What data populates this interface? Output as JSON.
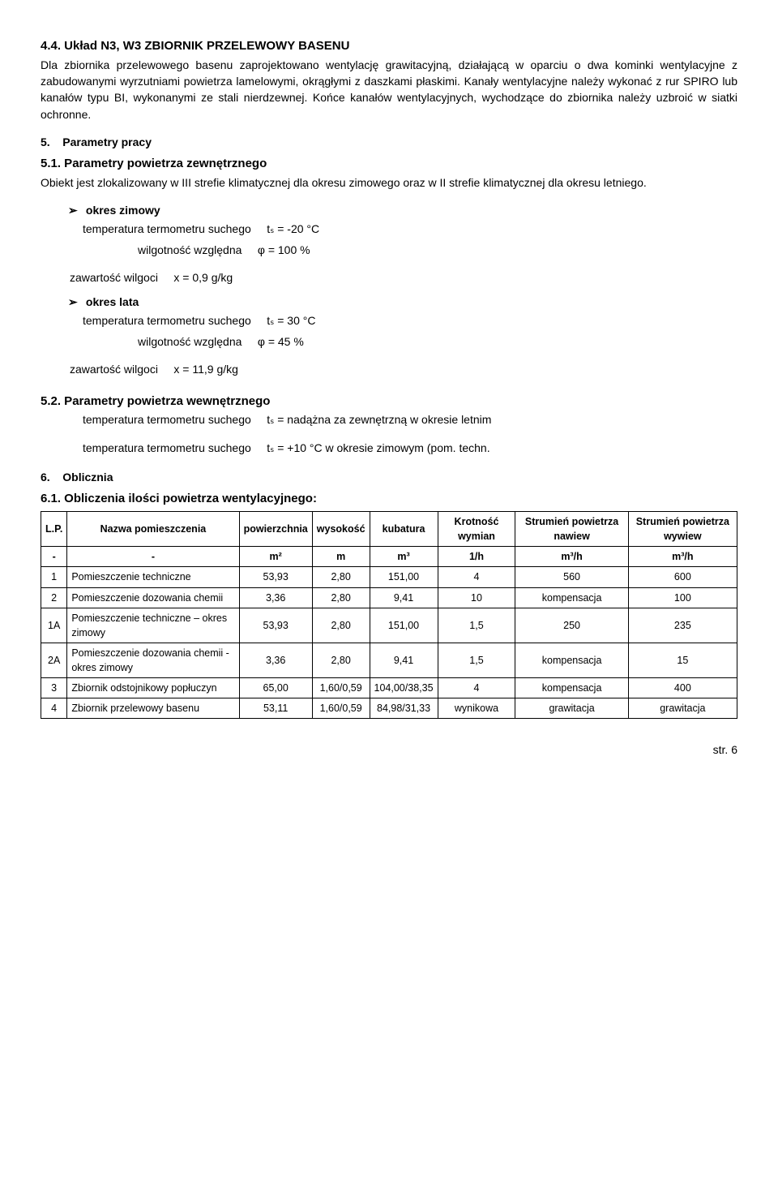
{
  "s44": {
    "heading": "4.4. Układ N3, W3 ZBIORNIK PRZELEWOWY BASENU",
    "body": "Dla zbiornika przelewowego basenu zaprojektowano wentylację grawitacyjną, działającą w oparciu o dwa kominki wentylacyjne z zabudowanymi wyrzutniami powietrza lamelowymi, okrągłymi z daszkami płaskimi. Kanały wentylacyjne należy wykonać z rur SPIRO lub kanałów typu BI, wykonanymi ze stali nierdzewnej. Końce kanałów wentylacyjnych, wychodzące do zbiornika należy uzbroić w siatki ochronne."
  },
  "s5": {
    "num": "5.",
    "label": "Parametry pracy"
  },
  "s51": {
    "heading": "5.1. Parametry powietrza zewnętrznego",
    "body": "Obiekt jest zlokalizowany w III strefie klimatycznej dla okresu zimowego oraz w II strefie klimatycznej dla okresu letniego."
  },
  "winter": {
    "title": "okres zimowy",
    "l1a": "temperatura termometru suchego",
    "l1b": "tₛ = -20 °C",
    "l2a": "wilgotność względna",
    "l2b": "φ =  100 %",
    "l3a": "zawartość wilgoci",
    "l3b": "x =  0,9 g/kg"
  },
  "summer": {
    "title": "okres lata",
    "l1a": "temperatura termometru suchego",
    "l1b": "tₛ = 30 °C",
    "l2a": "wilgotność względna",
    "l2b": "φ =  45 %",
    "l3a": "zawartość wilgoci",
    "l3b": "x = 11,9 g/kg"
  },
  "s52": {
    "heading": "5.2. Parametry powietrza wewnętrznego",
    "l1a": "temperatura termometru suchego",
    "l1b": "tₛ = nadążna za zewnętrzną w okresie letnim",
    "l2a": "temperatura termometru suchego",
    "l2b": "tₛ = +10 °C w okresie zimowym (pom. techn."
  },
  "s6": {
    "num": "6.",
    "label": "Oblicznia"
  },
  "s61": {
    "heading": "6.1. Obliczenia ilości powietrza wentylacyjnego:"
  },
  "table": {
    "headers": {
      "c0": "L.P.",
      "c1": "Nazwa pomieszczenia",
      "c2": "powierzchnia",
      "c3": "wysokość",
      "c4": "kubatura",
      "c5": "Krotność wymian",
      "c6": "Strumień powietrza nawiew",
      "c7": "Strumień powietrza wywiew"
    },
    "units": {
      "c0": "-",
      "c1": "-",
      "c2": "m²",
      "c3": "m",
      "c4": "m³",
      "c5": "1/h",
      "c6": "m³/h",
      "c7": "m³/h"
    },
    "rows": [
      {
        "c0": "1",
        "c1": "Pomieszczenie techniczne",
        "c2": "53,93",
        "c3": "2,80",
        "c4": "151,00",
        "c5": "4",
        "c6": "560",
        "c7": "600"
      },
      {
        "c0": "2",
        "c1": "Pomieszczenie dozowania chemii",
        "c2": "3,36",
        "c3": "2,80",
        "c4": "9,41",
        "c5": "10",
        "c6": "kompensacja",
        "c7": "100"
      },
      {
        "c0": "1A",
        "c1": "Pomieszczenie techniczne – okres zimowy",
        "c2": "53,93",
        "c3": "2,80",
        "c4": "151,00",
        "c5": "1,5",
        "c6": "250",
        "c7": "235"
      },
      {
        "c0": "2A",
        "c1": "Pomieszczenie dozowania chemii - okres zimowy",
        "c2": "3,36",
        "c3": "2,80",
        "c4": "9,41",
        "c5": "1,5",
        "c6": "kompensacja",
        "c7": "15"
      },
      {
        "c0": "3",
        "c1": "Zbiornik odstojnikowy popłuczyn",
        "c2": "65,00",
        "c3": "1,60/0,59",
        "c4": "104,00/38,35",
        "c5": "4",
        "c6": "kompensacja",
        "c7": "400"
      },
      {
        "c0": "4",
        "c1": "Zbiornik przelewowy basenu",
        "c2": "53,11",
        "c3": "1,60/0,59",
        "c4": "84,98/31,33",
        "c5": "wynikowa",
        "c6": "grawitacja",
        "c7": "grawitacja"
      }
    ]
  },
  "page": "str. 6"
}
